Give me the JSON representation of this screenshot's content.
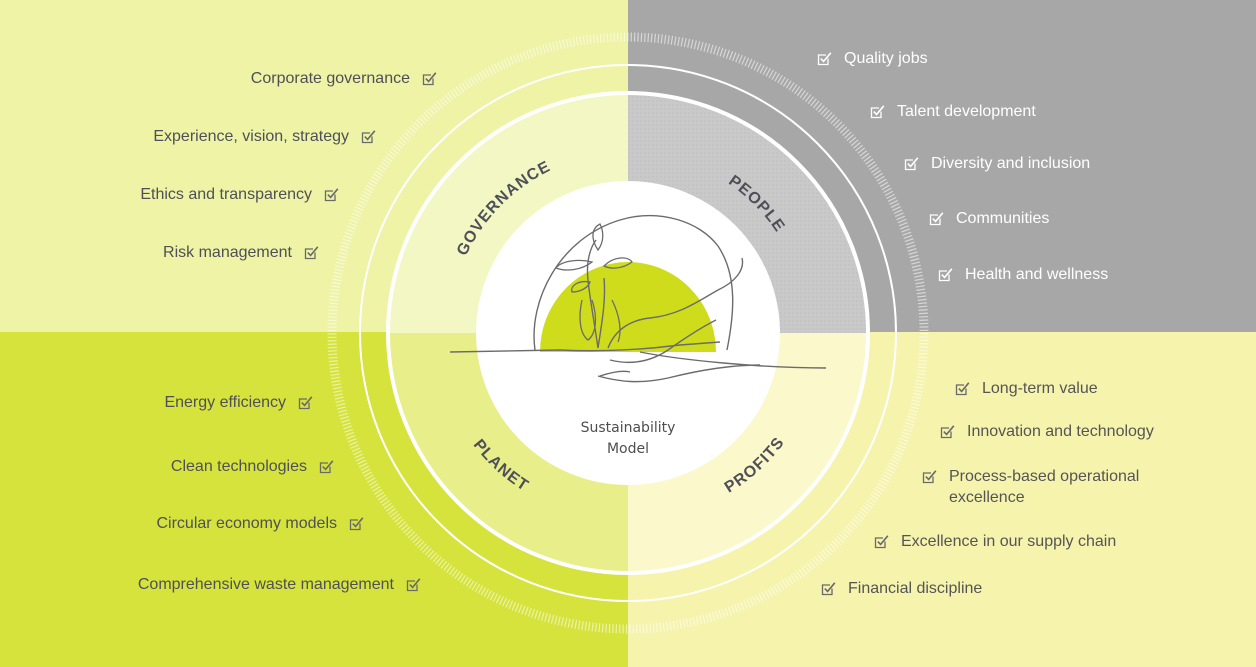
{
  "center": {
    "label_line1": "Sustainability",
    "label_line2": "Model"
  },
  "sections": {
    "governance": {
      "title": "GOVERNANCE",
      "items": [
        "Corporate governance",
        "Experience, vision, strategy",
        "Ethics and transparency",
        "Risk management"
      ]
    },
    "people": {
      "title": "PEOPLE",
      "items": [
        "Quality jobs",
        "Talent development",
        "Diversity and inclusion",
        "Communities",
        "Health and wellness"
      ]
    },
    "planet": {
      "title": "PLANET",
      "items": [
        "Energy efficiency",
        "Clean technologies",
        "Circular economy models",
        "Comprehensive waste management"
      ]
    },
    "profits": {
      "title": "PROFITS",
      "items": [
        "Long-term value",
        "Innovation and technology",
        "Process-based operational excellence",
        "Excellence in our supply chain",
        "Financial discipline"
      ]
    }
  },
  "colors": {
    "governance_bg": "#eef3a6",
    "people_bg": "#a7a7a7",
    "planet_bg": "#d6e33c",
    "profits_bg": "#f6f3ad",
    "accent_green": "#cfdc1c",
    "text_gray": "#4f5057"
  },
  "icons": {
    "item_marker": "checkbox-icon",
    "center_art": "hands-planting-seedling-icon"
  }
}
